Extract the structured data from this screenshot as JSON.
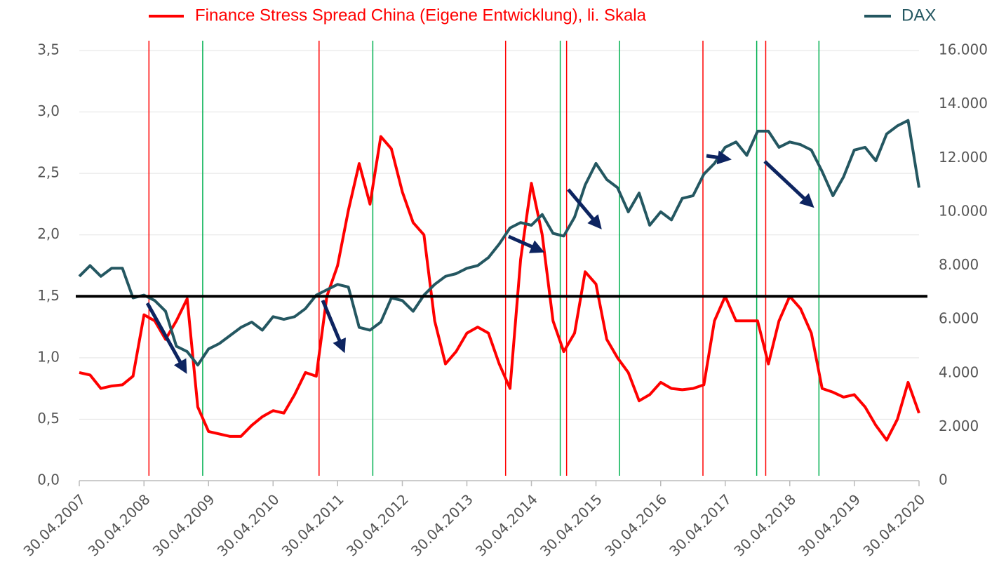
{
  "chart_data": {
    "type": "line",
    "x": [
      "30.04.2007",
      "30.06.2007",
      "30.08.2007",
      "30.10.2007",
      "30.12.2007",
      "28.02.2008",
      "30.04.2008",
      "30.06.2008",
      "30.08.2008",
      "30.10.2008",
      "30.12.2008",
      "28.02.2009",
      "30.04.2009",
      "30.06.2009",
      "30.08.2009",
      "30.10.2009",
      "30.12.2009",
      "28.02.2010",
      "30.04.2010",
      "30.06.2010",
      "30.08.2010",
      "30.10.2010",
      "30.12.2010",
      "28.02.2011",
      "30.04.2011",
      "30.06.2011",
      "30.08.2011",
      "30.10.2011",
      "30.12.2011",
      "28.02.2012",
      "30.04.2012",
      "30.06.2012",
      "30.08.2012",
      "30.10.2012",
      "30.12.2012",
      "28.02.2013",
      "30.04.2013",
      "30.06.2013",
      "30.08.2013",
      "30.10.2013",
      "30.12.2013",
      "28.02.2014",
      "30.04.2014",
      "30.06.2014",
      "30.08.2014",
      "30.10.2014",
      "30.12.2014",
      "28.02.2015",
      "30.04.2015",
      "30.06.2015",
      "30.08.2015",
      "30.10.2015",
      "30.12.2015",
      "28.02.2016",
      "30.04.2016",
      "30.06.2016",
      "30.08.2016",
      "30.10.2016",
      "30.12.2016",
      "28.02.2017",
      "30.04.2017",
      "30.06.2017",
      "30.08.2017",
      "30.10.2017",
      "30.12.2017",
      "28.02.2018",
      "30.04.2018",
      "30.06.2018",
      "30.08.2018",
      "30.10.2018",
      "30.12.2018",
      "28.02.2019",
      "30.04.2019",
      "30.06.2019",
      "30.08.2019",
      "30.10.2019",
      "30.12.2019",
      "28.02.2020",
      "30.04.2020"
    ],
    "series": [
      {
        "name": "Finance Stress Spread China (Eigene Entwicklung), li. Skala",
        "color": "#ff0000",
        "values": [
          0.88,
          0.86,
          0.75,
          0.77,
          0.78,
          0.85,
          1.35,
          1.3,
          1.15,
          1.3,
          1.48,
          0.6,
          0.4,
          0.38,
          0.36,
          0.36,
          0.45,
          0.52,
          0.57,
          0.55,
          0.7,
          0.88,
          0.85,
          1.5,
          1.75,
          2.2,
          2.58,
          2.25,
          2.8,
          2.7,
          2.35,
          2.1,
          2.0,
          1.3,
          0.95,
          1.05,
          1.2,
          1.25,
          1.2,
          0.95,
          0.75,
          1.8,
          2.42,
          2.0,
          1.3,
          1.05,
          1.2,
          1.7,
          1.6,
          1.15,
          1.0,
          0.88,
          0.65,
          0.7,
          0.8,
          0.75,
          0.74,
          0.75,
          0.78,
          1.3,
          1.5,
          1.3,
          1.3,
          1.3,
          0.95,
          1.3,
          1.5,
          1.4,
          1.2,
          0.75,
          0.72,
          0.68,
          0.7,
          0.6,
          0.45,
          0.33,
          0.5,
          0.8,
          0.55
        ]
      },
      {
        "name": "DAX",
        "color": "#245761",
        "axis": "y2",
        "values": [
          7600,
          8000,
          7600,
          7900,
          7900,
          6800,
          6900,
          6700,
          6300,
          5000,
          4800,
          4300,
          4900,
          5100,
          5400,
          5700,
          5900,
          5600,
          6100,
          6000,
          6100,
          6400,
          6900,
          7100,
          7300,
          7200,
          5700,
          5600,
          5900,
          6800,
          6700,
          6300,
          6900,
          7300,
          7600,
          7700,
          7900,
          8000,
          8300,
          8800,
          9400,
          9600,
          9500,
          9900,
          9200,
          9100,
          9800,
          11000,
          11800,
          11200,
          10900,
          10000,
          10700,
          9500,
          10000,
          9700,
          10500,
          10600,
          11400,
          11800,
          12400,
          12600,
          12100,
          13000,
          13000,
          12400,
          12600,
          12500,
          12300,
          11500,
          10600,
          11300,
          12300,
          12400,
          11900,
          12900,
          13200,
          13400,
          10900
        ]
      }
    ],
    "xlim": [
      "30.04.2007",
      "30.04.2020"
    ],
    "xticks": [
      "30.04.2007",
      "30.04.2008",
      "30.04.2009",
      "30.04.2010",
      "30.04.2011",
      "30.04.2012",
      "30.04.2013",
      "30.04.2014",
      "30.04.2015",
      "30.04.2016",
      "30.04.2017",
      "30.04.2018",
      "30.04.2019",
      "30.04.2020"
    ],
    "ylim": [
      0,
      3.5
    ],
    "yticks": [
      {
        "value": 0,
        "label": "0,0"
      },
      {
        "value": 0.5,
        "label": "0,5"
      },
      {
        "value": 1,
        "label": "1,0"
      },
      {
        "value": 1.5,
        "label": "1,5"
      },
      {
        "value": 2,
        "label": "2,0"
      },
      {
        "value": 2.5,
        "label": "2,5"
      },
      {
        "value": 3,
        "label": "3,0"
      },
      {
        "value": 3.5,
        "label": "3,5"
      }
    ],
    "y2lim": [
      0,
      16000
    ],
    "y2ticks": [
      0,
      {
        "value": 2000,
        "label": "2.000"
      },
      {
        "value": 4000,
        "label": "4.000"
      },
      {
        "value": 6000,
        "label": "6.000"
      },
      {
        "value": 8000,
        "label": "8.000"
      },
      {
        "value": 10000,
        "label": "10.000"
      },
      {
        "value": 12000,
        "label": "12.000"
      },
      {
        "value": 14000,
        "label": "14.000"
      },
      {
        "value": 16000,
        "label": "16.000"
      }
    ],
    "grid": true,
    "legend": "top",
    "hline": 1.5,
    "vlines": [
      {
        "x": "28.05.2008",
        "color": "#ff0000"
      },
      {
        "x": "28.03.2009",
        "color": "#00b050"
      },
      {
        "x": "15.01.2011",
        "color": "#ff0000"
      },
      {
        "x": "15.11.2011",
        "color": "#00b050"
      },
      {
        "x": "05.12.2013",
        "color": "#ff0000"
      },
      {
        "x": "10.10.2014",
        "color": "#00b050"
      },
      {
        "x": "15.11.2014",
        "color": "#ff0000"
      },
      {
        "x": "10.09.2015",
        "color": "#00b050"
      },
      {
        "x": "25.12.2016",
        "color": "#ff0000"
      },
      {
        "x": "25.10.2017",
        "color": "#00b050"
      },
      {
        "x": "15.12.2017",
        "color": "#ff0000"
      },
      {
        "x": "12.10.2018",
        "color": "#00b050"
      }
    ]
  }
}
